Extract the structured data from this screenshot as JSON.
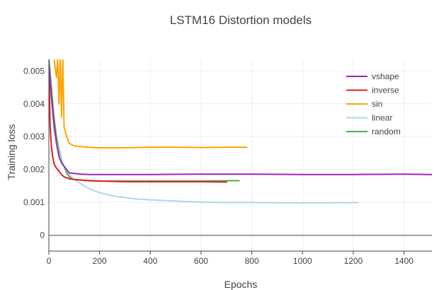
{
  "chart_data": {
    "type": "line",
    "title": "LSTM16 Distortion models",
    "xlabel": "Epochs",
    "ylabel": "Training loss",
    "xlim": [
      0,
      1510
    ],
    "ylim": [
      -0.00048,
      0.00535
    ],
    "xticks": [
      0,
      200,
      400,
      600,
      800,
      1000,
      1200,
      1400
    ],
    "xtick_labels": [
      "0",
      "200",
      "400",
      "600",
      "800",
      "1000",
      "1200",
      "1400"
    ],
    "yticks": [
      0,
      0.001,
      0.002,
      0.003,
      0.004,
      0.005
    ],
    "ytick_labels": [
      "0",
      "0.001",
      "0.002",
      "0.003",
      "0.004",
      "0.005"
    ],
    "grid": true,
    "legend_position": "top-right",
    "series": [
      {
        "name": "vshape",
        "color": "#9c27b0",
        "x": [
          0,
          10,
          20,
          30,
          40,
          50,
          60,
          80,
          100,
          130,
          160,
          200,
          300,
          400,
          600,
          800,
          1000,
          1200,
          1400,
          1510
        ],
        "y": [
          0.0052,
          0.0042,
          0.0034,
          0.0028,
          0.0024,
          0.0022,
          0.0021,
          0.0019,
          0.00188,
          0.00186,
          0.00185,
          0.00185,
          0.00185,
          0.00185,
          0.00186,
          0.00186,
          0.00185,
          0.00185,
          0.00186,
          0.00185
        ]
      },
      {
        "name": "inverse",
        "color": "#e02020",
        "x": [
          0,
          5,
          10,
          15,
          20,
          25,
          30,
          40,
          50,
          60,
          80,
          100,
          150,
          200,
          300,
          400,
          500,
          600,
          700
        ],
        "y": [
          0.0052,
          0.0033,
          0.0027,
          0.0024,
          0.0022,
          0.0021,
          0.00205,
          0.00195,
          0.00185,
          0.00178,
          0.00172,
          0.0017,
          0.00167,
          0.00165,
          0.00163,
          0.00163,
          0.00163,
          0.00163,
          0.00162
        ]
      },
      {
        "name": "sin",
        "color": "#ffa500",
        "x": [
          0,
          20,
          30,
          35,
          40,
          45,
          50,
          55,
          60,
          70,
          80,
          100,
          150,
          200,
          300,
          400,
          500,
          600,
          700,
          780
        ],
        "y": [
          0.0054,
          0.0054,
          0.0048,
          0.0054,
          0.004,
          0.0054,
          0.0036,
          0.0054,
          0.0033,
          0.003,
          0.0028,
          0.00272,
          0.00268,
          0.00266,
          0.00266,
          0.00268,
          0.00268,
          0.00267,
          0.00268,
          0.00268
        ]
      },
      {
        "name": "linear",
        "color": "#add8e6",
        "x": [
          0,
          20,
          40,
          60,
          80,
          100,
          120,
          140,
          160,
          180,
          200,
          250,
          300,
          350,
          400,
          450,
          500,
          600,
          700,
          800,
          900,
          1000,
          1100,
          1220
        ],
        "y": [
          0.0052,
          0.0032,
          0.0025,
          0.0021,
          0.00185,
          0.0017,
          0.0016,
          0.0015,
          0.00142,
          0.00135,
          0.0013,
          0.0012,
          0.00115,
          0.0011,
          0.00108,
          0.00106,
          0.00104,
          0.00101,
          0.001,
          0.001,
          0.00099,
          0.00099,
          0.00099,
          0.001
        ]
      },
      {
        "name": "random",
        "color": "#4caf50",
        "x": [
          0,
          10,
          20,
          30,
          40,
          50,
          60,
          70,
          80,
          100,
          150,
          200,
          300,
          400,
          500,
          600,
          700,
          750
        ],
        "y": [
          0.0054,
          0.0045,
          0.0036,
          0.003,
          0.0026,
          0.0023,
          0.0021,
          0.0019,
          0.00178,
          0.0017,
          0.00166,
          0.00165,
          0.00165,
          0.00165,
          0.00165,
          0.00165,
          0.00166,
          0.00166
        ]
      }
    ]
  }
}
